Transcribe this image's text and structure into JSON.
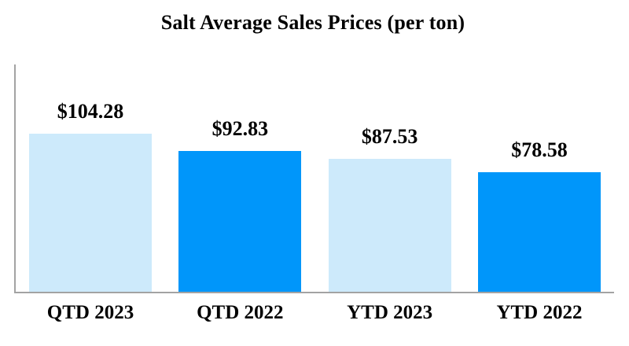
{
  "chart_data": {
    "type": "bar",
    "title": "Salt Average Sales Prices (per ton)",
    "categories": [
      "QTD 2023",
      "QTD 2022",
      "YTD 2023",
      "YTD 2022"
    ],
    "values": [
      104.28,
      92.83,
      87.53,
      78.58
    ],
    "value_labels": [
      "$104.28",
      "$92.83",
      "$87.53",
      "$78.58"
    ],
    "bar_colors": [
      "#CDEAFB",
      "#0096FA",
      "#CDEAFB",
      "#0096FA"
    ],
    "axis_color": "#A3A3A3",
    "text_color": "#000000",
    "background_color": "#FFFFFF",
    "xlabel": "",
    "ylabel": "",
    "ylim": [
      0,
      150
    ],
    "grid": false,
    "legend": false
  }
}
